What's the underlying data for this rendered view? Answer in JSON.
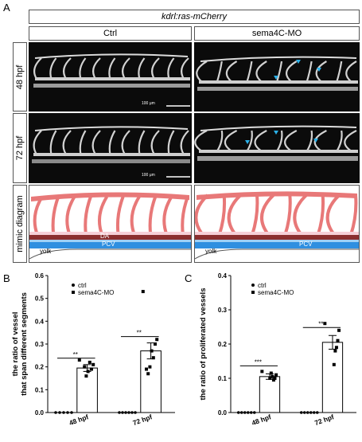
{
  "panelA": {
    "letter": "A",
    "top_title": "kdrl:ras-mCherry",
    "col_ctrl": "Ctrl",
    "col_mo": "sema4C-MO",
    "row_48": "48 hpf",
    "row_72": "72 hpf",
    "row_mimic": "mimic diagram",
    "scale_48": "100 μm",
    "scale_72": "100 μm",
    "label_da": "DA",
    "label_pcv": "PCV",
    "label_yolk": "yolk",
    "label_pcv_mo": "PCV",
    "label_yolk_mo": "yolk"
  },
  "panelB": {
    "letter": "B"
  },
  "panelC": {
    "letter": "C"
  },
  "colors": {
    "vessel": "#e87878",
    "da": "#8b2f2f",
    "pcv": "#2f8fe0",
    "pcv_light": "#9fd0f5",
    "arrow": "#2ab0e8"
  },
  "chart_data": [
    {
      "type": "bar",
      "title": "",
      "ylabel": "the ratio of vessel that span different segments",
      "xlabel": "",
      "categories": [
        "48 hpf",
        "72 hpf"
      ],
      "ylim": [
        0,
        0.6
      ],
      "yticks": [
        "0.0",
        "0.1",
        "0.2",
        "0.3",
        "0.4",
        "0.5",
        "0.6"
      ],
      "legend": [
        "ctrl",
        "sema4C-MO"
      ],
      "legend_position": "top-left",
      "series": [
        {
          "name": "ctrl",
          "values": [
            0.0,
            0.0
          ],
          "points": [
            [
              0,
              0,
              0,
              0,
              0
            ],
            [
              0,
              0,
              0,
              0,
              0,
              0
            ]
          ]
        },
        {
          "name": "sema4C-MO",
          "values": [
            0.195,
            0.27
          ],
          "errors": [
            0.015,
            0.035
          ],
          "points": [
            [
              0.23,
              0.21,
              0.19,
              0.22,
              0.18,
              0.16,
              0.2
            ],
            [
              0.53,
              0.32,
              0.3,
              0.24,
              0.27,
              0.2,
              0.17,
              0.19
            ]
          ]
        }
      ],
      "significance": [
        "**",
        "**"
      ]
    },
    {
      "type": "bar",
      "title": "",
      "ylabel": "the ratio of proliferated vessels",
      "xlabel": "",
      "categories": [
        "48 hpf",
        "72 hpf"
      ],
      "ylim": [
        0,
        0.4
      ],
      "yticks": [
        "0.0",
        "0.1",
        "0.2",
        "0.3",
        "0.4"
      ],
      "legend": [
        "ctrl",
        "sema4C-MO"
      ],
      "legend_position": "top-left",
      "series": [
        {
          "name": "ctrl",
          "values": [
            0.0,
            0.0
          ],
          "points": [
            [
              0,
              0,
              0,
              0,
              0,
              0
            ],
            [
              0,
              0,
              0,
              0,
              0,
              0
            ]
          ]
        },
        {
          "name": "sema4C-MO",
          "values": [
            0.105,
            0.205
          ],
          "errors": [
            0.008,
            0.02
          ],
          "points": [
            [
              0.12,
              0.11,
              0.1,
              0.095,
              0.105,
              0.115,
              0.1
            ],
            [
              0.26,
              0.24,
              0.21,
              0.19,
              0.18,
              0.14
            ]
          ]
        }
      ],
      "significance": [
        "***",
        "**"
      ]
    }
  ]
}
